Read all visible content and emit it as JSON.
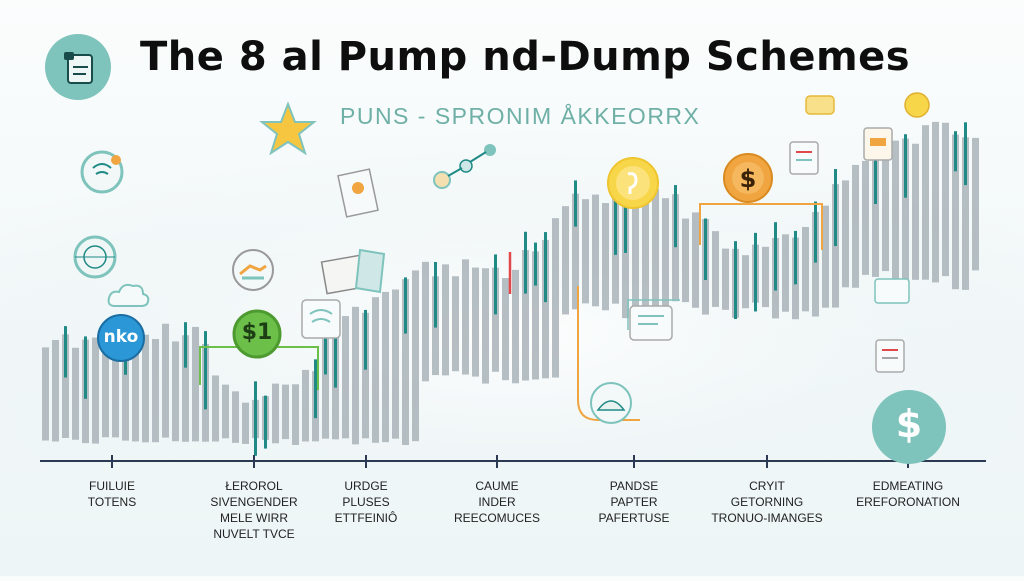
{
  "title": "The 8 al Pump nd-Dump Schemes",
  "subtitle": "PUNS - SPRONIM ÅKKEORRX",
  "badges": {
    "left_badge": "nko",
    "green_badge": "$1",
    "dollar_badge": "$"
  },
  "colors": {
    "teal": "#1f8a86",
    "bar_gray": "#a9b3b8",
    "green": "#6cc04a",
    "orange": "#f0a540",
    "yellow": "#f8d64a",
    "blue": "#2b97d6",
    "axis": "#2b3a52",
    "dollar_circle": "#7ec3bc"
  },
  "timeline_labels": [
    [
      "FUILUIE",
      "TOTENS"
    ],
    [
      "ŁEROROL",
      "SIVENGENDER",
      "MELE WIRR",
      "NUVELT TVCE"
    ],
    [
      "URDGE",
      "PLUSES",
      "ETTFEINIÔ"
    ],
    [
      "CAUME",
      "INDER",
      "REECOMUCES"
    ],
    [
      "PANDSE",
      "PAPTER",
      "PAFERTUSE"
    ],
    [
      "CRYIT",
      "GETORNING",
      "TRONUO-IMANGES"
    ],
    [
      "EDMEATING",
      "EREFORONATION"
    ]
  ]
}
